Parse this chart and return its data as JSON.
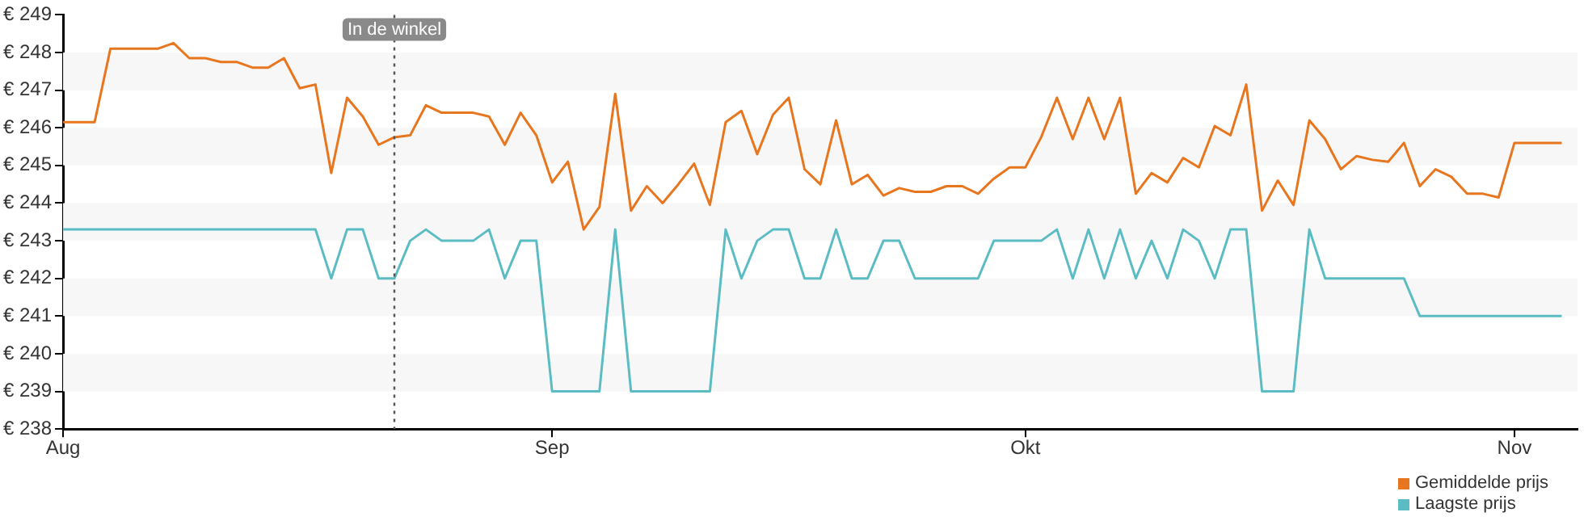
{
  "chart_data": {
    "type": "line",
    "x": [
      "--08-01",
      "--08-02",
      "--08-03",
      "--08-04",
      "--08-05",
      "--08-06",
      "--08-07",
      "--08-08",
      "--08-09",
      "--08-10",
      "--08-11",
      "--08-12",
      "--08-13",
      "--08-14",
      "--08-15",
      "--08-16",
      "--08-17",
      "--08-18",
      "--08-19",
      "--08-20",
      "--08-21",
      "--08-22",
      "--08-23",
      "--08-24",
      "--08-25",
      "--08-26",
      "--08-27",
      "--08-28",
      "--08-29",
      "--08-30",
      "--08-31",
      "--09-01",
      "--09-02",
      "--09-03",
      "--09-04",
      "--09-05",
      "--09-06",
      "--09-07",
      "--09-08",
      "--09-09",
      "--09-10",
      "--09-11",
      "--09-12",
      "--09-13",
      "--09-14",
      "--09-15",
      "--09-16",
      "--09-17",
      "--09-18",
      "--09-19",
      "--09-20",
      "--09-21",
      "--09-22",
      "--09-23",
      "--09-24",
      "--09-25",
      "--09-26",
      "--09-27",
      "--09-28",
      "--09-29",
      "--09-30",
      "--10-01",
      "--10-02",
      "--10-03",
      "--10-04",
      "--10-05",
      "--10-06",
      "--10-07",
      "--10-08",
      "--10-09",
      "--10-10",
      "--10-11",
      "--10-12",
      "--10-13",
      "--10-14",
      "--10-15",
      "--10-16",
      "--10-17",
      "--10-18",
      "--10-19",
      "--10-20",
      "--10-21",
      "--10-22",
      "--10-23",
      "--10-24",
      "--10-25",
      "--10-26",
      "--10-27",
      "--10-28",
      "--10-29",
      "--10-30",
      "--10-31",
      "--11-01",
      "--11-02",
      "--11-03",
      "--11-04"
    ],
    "series": [
      {
        "name": "Gemiddelde prijs",
        "color": "#e8761f",
        "values": [
          246.15,
          246.15,
          246.15,
          248.1,
          248.1,
          248.1,
          248.1,
          248.25,
          247.85,
          247.85,
          247.75,
          247.75,
          247.6,
          247.6,
          247.85,
          247.05,
          247.15,
          244.8,
          246.8,
          246.3,
          245.55,
          245.75,
          245.8,
          246.6,
          246.4,
          246.4,
          246.4,
          246.3,
          245.55,
          246.4,
          245.8,
          244.55,
          245.1,
          243.3,
          243.9,
          246.9,
          243.8,
          244.45,
          244.0,
          244.5,
          245.05,
          243.95,
          246.15,
          246.45,
          245.3,
          246.35,
          246.8,
          244.9,
          244.5,
          246.2,
          244.5,
          244.75,
          244.2,
          244.4,
          244.3,
          244.3,
          244.45,
          244.45,
          244.25,
          244.65,
          244.95,
          244.95,
          245.75,
          246.8,
          245.7,
          246.8,
          245.7,
          246.8,
          244.25,
          244.8,
          244.55,
          245.2,
          244.95,
          246.05,
          245.8,
          247.15,
          243.8,
          244.6,
          243.95,
          246.2,
          245.7,
          244.9,
          245.25,
          245.15,
          245.1,
          245.6,
          244.45,
          244.9,
          244.7,
          244.25,
          244.25,
          244.15,
          245.6,
          245.6,
          245.6,
          245.6
        ]
      },
      {
        "name": "Laagste prijs",
        "color": "#5bbcc4",
        "values": [
          243.3,
          243.3,
          243.3,
          243.3,
          243.3,
          243.3,
          243.3,
          243.3,
          243.3,
          243.3,
          243.3,
          243.3,
          243.3,
          243.3,
          243.3,
          243.3,
          243.3,
          242,
          243.3,
          243.3,
          242,
          242,
          243,
          243.3,
          243,
          243,
          243,
          243.3,
          242,
          243,
          243,
          239,
          239,
          239,
          239,
          243.3,
          239,
          239,
          239,
          239,
          239,
          239,
          243.3,
          242,
          243,
          243.3,
          243.3,
          242,
          242,
          243.3,
          242,
          242,
          243,
          243,
          242,
          242,
          242,
          242,
          242,
          243,
          243,
          243,
          243,
          243.3,
          242,
          243.3,
          242,
          243.3,
          242,
          243,
          242,
          243.3,
          243,
          242,
          243.3,
          243.3,
          239,
          239,
          239,
          243.3,
          242,
          242,
          242,
          242,
          242,
          242,
          241,
          241,
          241,
          241,
          241,
          241,
          241,
          241,
          241,
          241
        ]
      }
    ],
    "xlim": [
      "--08-01",
      "--11-05"
    ],
    "xticks": [
      {
        "value": "--08-01",
        "label": "Aug"
      },
      {
        "value": "--09-01",
        "label": "Sep"
      },
      {
        "value": "--10-01",
        "label": "Okt"
      },
      {
        "value": "--11-01",
        "label": "Nov"
      }
    ],
    "ylim": [
      238,
      249
    ],
    "yticks": [
      {
        "value": 238,
        "label": "€ 238"
      },
      {
        "value": 239,
        "label": "€ 239"
      },
      {
        "value": 240,
        "label": "€ 240"
      },
      {
        "value": 241,
        "label": "€ 241"
      },
      {
        "value": 242,
        "label": "€ 242"
      },
      {
        "value": 243,
        "label": "€ 243"
      },
      {
        "value": 244,
        "label": "€ 244"
      },
      {
        "value": 245,
        "label": "€ 245"
      },
      {
        "value": 246,
        "label": "€ 246"
      },
      {
        "value": 247,
        "label": "€ 247"
      },
      {
        "value": 248,
        "label": "€ 248"
      },
      {
        "value": 249,
        "label": "€ 249"
      }
    ],
    "ref_lines": [
      {
        "axis": "x",
        "value": "--08-22",
        "label": "In de winkel",
        "color": "#555555",
        "line_style": "dotted"
      }
    ],
    "legend": "bottom right",
    "marker": "none",
    "line_style": "solid"
  }
}
